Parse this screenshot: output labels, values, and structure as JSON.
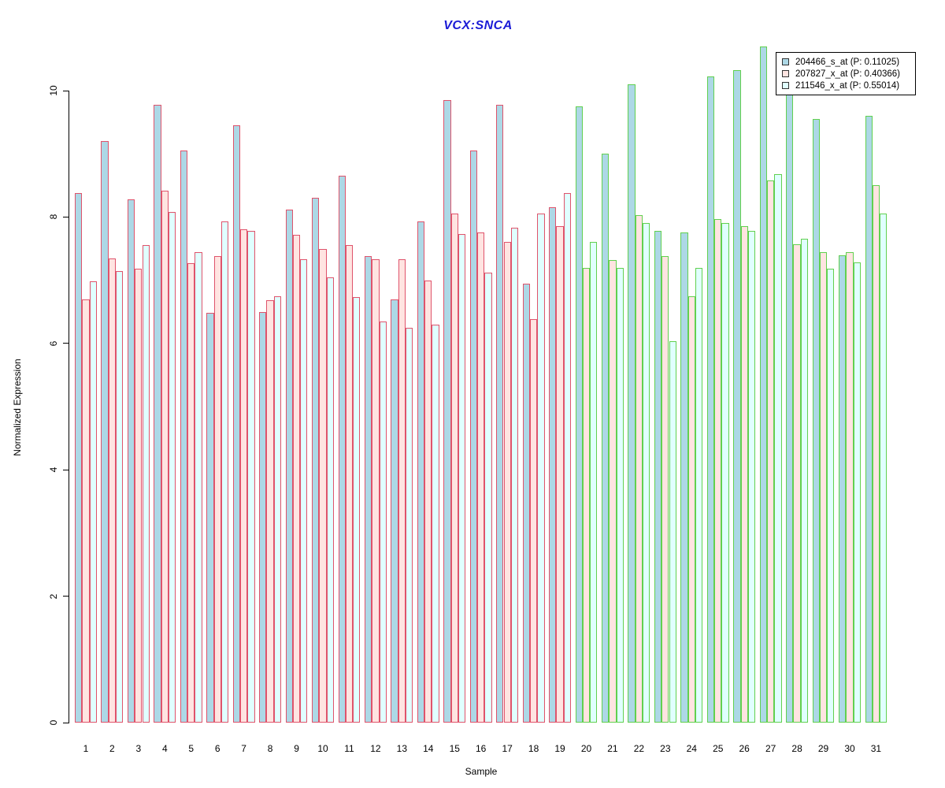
{
  "chart_data": {
    "type": "bar",
    "title": "VCX:SNCA",
    "title_color": "#1b1bd6",
    "xlabel": "Sample",
    "ylabel": "Normalized Expression",
    "ylim": [
      0,
      10
    ],
    "yticks": [
      0,
      2,
      4,
      6,
      8,
      10
    ],
    "categories": [
      "1",
      "2",
      "3",
      "4",
      "5",
      "6",
      "7",
      "8",
      "9",
      "10",
      "11",
      "12",
      "13",
      "14",
      "15",
      "16",
      "17",
      "18",
      "19",
      "20",
      "21",
      "22",
      "23",
      "24",
      "25",
      "26",
      "27",
      "28",
      "29",
      "30",
      "31"
    ],
    "grid": false,
    "legend_position": "top-right",
    "series": [
      {
        "name": "204466_s_at (P: 0.11025)",
        "fill": "#ADD8E6",
        "values": [
          8.38,
          9.2,
          8.28,
          9.78,
          9.05,
          6.48,
          9.45,
          6.5,
          8.12,
          8.3,
          8.65,
          7.38,
          6.7,
          7.93,
          9.85,
          9.05,
          9.78,
          6.95,
          8.15,
          9.75,
          9.0,
          10.1,
          7.78,
          7.75,
          10.22,
          10.32,
          10.7,
          9.95,
          9.55,
          7.4,
          9.6
        ]
      },
      {
        "name": "207827_x_at (P: 0.40366)",
        "fill": "#FFE4E1",
        "values": [
          6.7,
          7.35,
          7.18,
          8.42,
          7.27,
          7.38,
          7.8,
          6.68,
          7.72,
          7.5,
          7.55,
          7.33,
          7.33,
          7.0,
          8.05,
          7.75,
          7.6,
          6.38,
          7.85,
          7.2,
          7.32,
          8.03,
          7.38,
          6.75,
          7.97,
          7.85,
          8.58,
          7.57,
          7.45,
          7.45,
          8.5
        ]
      },
      {
        "name": "211546_x_at (P: 0.55014)",
        "fill": "#E0FFFF",
        "values": [
          6.98,
          7.15,
          7.55,
          8.08,
          7.45,
          7.93,
          7.78,
          6.75,
          7.33,
          7.05,
          6.73,
          6.35,
          6.25,
          6.3,
          7.73,
          7.12,
          7.83,
          8.05,
          8.38,
          7.6,
          7.2,
          7.9,
          6.03,
          7.2,
          7.9,
          7.78,
          8.68,
          7.65,
          7.18,
          7.28,
          8.05
        ]
      }
    ],
    "group_border_colors": {
      "samples_1_to_19": "#DF536B",
      "samples_20_to_31": "#61D04F"
    },
    "red_border_last_sample_index": 19
  }
}
